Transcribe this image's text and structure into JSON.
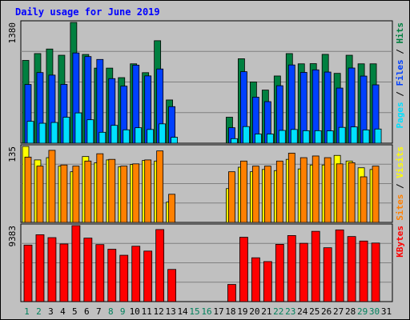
{
  "chart_data": {
    "type": "bar",
    "title": "Daily usage for June 2019",
    "days": [
      "1",
      "2",
      "3",
      "4",
      "5",
      "6",
      "7",
      "8",
      "9",
      "10",
      "11",
      "12",
      "13",
      "14",
      "15",
      "16",
      "17",
      "18",
      "19",
      "20",
      "21",
      "22",
      "23",
      "24",
      "25",
      "26",
      "27",
      "28",
      "29",
      "30",
      "31"
    ],
    "weekend_days": [
      "1",
      "2",
      "8",
      "9",
      "15",
      "16",
      "22",
      "23",
      "29",
      "30"
    ],
    "colors": {
      "hits": "#008040",
      "files": "#0040ff",
      "pages": "#00e0ff",
      "visits": "#ffff00",
      "sites": "#ff8000",
      "kbytes": "#ff0000",
      "plot_bg": "#c0c0c0",
      "frame_bg": "#c0c0c0",
      "title": "#0000ff",
      "weekday_label": "#000000",
      "weekend_label": "#00805c"
    },
    "panels": [
      {
        "id": "hits-files-pages",
        "ymax_label": "1380",
        "ymax": 1380,
        "legend": [
          {
            "text": "Pages",
            "color": "#00e0ff"
          },
          {
            "text": " / ",
            "color": "#000000"
          },
          {
            "text": "Files",
            "color": "#0040ff"
          },
          {
            "text": " / ",
            "color": "#000000"
          },
          {
            "text": "Hits",
            "color": "#008040"
          }
        ],
        "series": [
          {
            "name": "Hits",
            "color": "#008040",
            "values": [
              946,
              1024,
              1076,
              1005,
              1380,
              1014,
              858,
              858,
              749,
              907,
              806,
              1171,
              494,
              0,
              0,
              0,
              0,
              297,
              965,
              700,
              607,
              768,
              1024,
              907,
              909,
              1015,
              798,
              1005,
              907,
              907,
              0
            ]
          },
          {
            "name": "Files",
            "color": "#0040ff",
            "values": [
              671,
              807,
              778,
              672,
              1031,
              990,
              957,
              738,
              652,
              892,
              769,
              848,
              418,
              0,
              0,
              0,
              0,
              177,
              817,
              526,
              475,
              657,
              894,
              809,
              838,
              813,
              630,
              859,
              767,
              667,
              0
            ]
          },
          {
            "name": "Pages",
            "color": "#00e0ff",
            "values": [
              250,
              228,
              237,
              297,
              346,
              268,
              125,
              204,
              153,
              177,
              157,
              221,
              68,
              0,
              0,
              0,
              0,
              52,
              190,
              105,
              105,
              146,
              157,
              143,
              143,
              141,
              181,
              186,
              152,
              162,
              0
            ]
          }
        ]
      },
      {
        "id": "visits-sites",
        "ymax_label": "135",
        "ymax": 135,
        "legend": [
          {
            "text": "Sites",
            "color": "#ff8000"
          },
          {
            "text": " / ",
            "color": "#000000"
          },
          {
            "text": "Visits",
            "color": "#ffff00"
          }
        ],
        "series": [
          {
            "name": "Visits",
            "color": "#ffff00",
            "values": [
              135,
              111,
              115,
              100,
              90,
              117,
              106,
              111,
              99,
              103,
              110,
              109,
              36,
              0,
              0,
              0,
              0,
              60,
              98,
              90,
              94,
              92,
              112,
              95,
              102,
              102,
              119,
              109,
              97,
              94,
              0
            ]
          },
          {
            "name": "Sites",
            "color": "#ff8000",
            "values": [
              116,
              100,
              128,
              102,
              100,
              109,
              122,
              112,
              100,
              104,
              111,
              127,
              50,
              0,
              0,
              0,
              0,
              90,
              109,
              100,
              100,
              109,
              123,
              115,
              118,
              115,
              104,
              106,
              81,
              100,
              0
            ]
          }
        ]
      },
      {
        "id": "kbytes",
        "ymax_label": "9383",
        "ymax": 9383,
        "legend": [
          {
            "text": "KBytes",
            "color": "#ff0000"
          }
        ],
        "series": [
          {
            "name": "KBytes",
            "color": "#ff0000",
            "values": [
              6981,
              8257,
              7899,
              7117,
              9383,
              7839,
              7041,
              6466,
              5723,
              6838,
              6240,
              8896,
              3973,
              0,
              0,
              0,
              0,
              2118,
              7946,
              5411,
              4942,
              7072,
              8157,
              7199,
              8678,
              6651,
              8856,
              8034,
              7479,
              7231,
              0
            ]
          }
        ]
      }
    ]
  }
}
